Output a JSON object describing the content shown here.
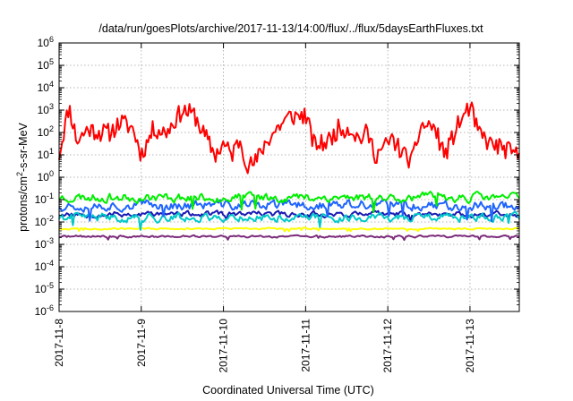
{
  "chart_data": {
    "type": "line",
    "title": "/data/run/goesPlots/archive/2017-11-13/14:00/flux/../flux/5daysEarthFluxes.txt",
    "xlabel": "Coordinated Universal Time (UTC)",
    "ylabel": {
      "main": "protons/cm",
      "sup": "2",
      "rest": "-s-sr-MeV"
    },
    "yscale": "log",
    "ylim_exp": [
      -6,
      6
    ],
    "xlim_days": [
      0,
      5.6
    ],
    "x_ticks": [
      {
        "label": "2017-11-8",
        "day": 0
      },
      {
        "label": "2017-11-9",
        "day": 1
      },
      {
        "label": "2017-11-10",
        "day": 2
      },
      {
        "label": "2017-11-11",
        "day": 3
      },
      {
        "label": "2017-11-12",
        "day": 4
      },
      {
        "label": "2017-11-13",
        "day": 5
      }
    ],
    "grid": true,
    "series": [
      {
        "color": "#ff0000",
        "width": 2,
        "base_log": 1.6,
        "noise": 0.85,
        "seed": 11,
        "points": [
          [
            0.0,
            10
          ],
          [
            0.12,
            1500
          ],
          [
            0.22,
            40
          ],
          [
            0.35,
            150
          ],
          [
            0.5,
            100
          ],
          [
            0.62,
            100
          ],
          [
            0.75,
            300
          ],
          [
            0.9,
            150
          ],
          [
            1.0,
            10
          ],
          [
            1.15,
            150
          ],
          [
            1.3,
            100
          ],
          [
            1.5,
            1000
          ],
          [
            1.65,
            600
          ],
          [
            1.75,
            100
          ],
          [
            1.9,
            10
          ],
          [
            2.0,
            30
          ],
          [
            2.1,
            10
          ],
          [
            2.2,
            50
          ],
          [
            2.3,
            3
          ],
          [
            2.4,
            5
          ],
          [
            2.5,
            30
          ],
          [
            2.65,
            150
          ],
          [
            2.8,
            500
          ],
          [
            3.0,
            600
          ],
          [
            3.1,
            30
          ],
          [
            3.2,
            30
          ],
          [
            3.3,
            50
          ],
          [
            3.4,
            150
          ],
          [
            3.55,
            150
          ],
          [
            3.65,
            50
          ],
          [
            3.75,
            100
          ],
          [
            3.85,
            10
          ],
          [
            3.95,
            20
          ],
          [
            4.05,
            50
          ],
          [
            4.2,
            10
          ],
          [
            4.3,
            5
          ],
          [
            4.4,
            200
          ],
          [
            4.55,
            200
          ],
          [
            4.7,
            10
          ],
          [
            4.85,
            200
          ],
          [
            5.0,
            1500
          ],
          [
            5.1,
            100
          ],
          [
            5.25,
            30
          ],
          [
            5.4,
            20
          ],
          [
            5.55,
            10
          ],
          [
            5.6,
            10
          ]
        ]
      },
      {
        "color": "#00ee00",
        "width": 2,
        "base_log": -0.9,
        "noise": 0.16,
        "seed": 23
      },
      {
        "color": "#1e64ff",
        "width": 2,
        "base_log": -1.25,
        "noise": 0.18,
        "seed": 37
      },
      {
        "color": "#00c8c8",
        "width": 2,
        "base_log": -1.8,
        "noise": 0.15,
        "seed": 41
      },
      {
        "color": "#1a1ab4",
        "width": 2,
        "base_log": -1.65,
        "noise": 0.1,
        "seed": 53
      },
      {
        "color": "#ffff00",
        "width": 2,
        "base_log": -2.3,
        "noise": 0.03,
        "seed": 67
      },
      {
        "color": "#7a2a7a",
        "width": 2,
        "base_log": -2.65,
        "noise": 0.04,
        "seed": 71
      }
    ]
  }
}
